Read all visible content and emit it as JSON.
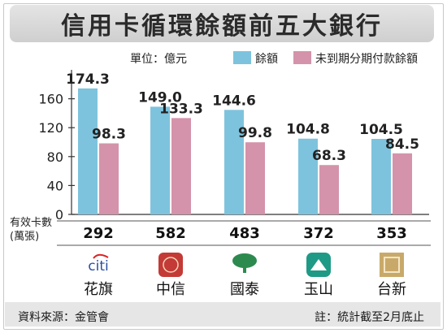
{
  "title": "信用卡循環餘額前五大銀行",
  "unit_label": "單位：億元",
  "cards_label_line1": "有效卡數",
  "cards_label_line2": "(萬張)",
  "footer": {
    "source": "資料來源：金管會",
    "note": "註：統計截至2月底止"
  },
  "colors": {
    "series1": "#7ec3dd",
    "series2": "#d493aa",
    "axis": "#333333"
  },
  "chart_data": {
    "type": "bar",
    "categories": [
      "花旗",
      "中信",
      "國泰",
      "玉山",
      "台新"
    ],
    "series": [
      {
        "name": "餘額",
        "values": [
          174.3,
          149.0,
          144.6,
          104.8,
          104.5
        ],
        "labels": [
          "174.3",
          "149.0",
          "144.6",
          "104.8",
          "104.5"
        ]
      },
      {
        "name": "未到期分期付款餘額",
        "values": [
          98.3,
          133.3,
          99.8,
          68.3,
          84.5
        ],
        "labels": [
          "98.3",
          "133.3",
          "99.8",
          "68.3",
          "84.5"
        ]
      }
    ],
    "yticks": [
      "0",
      "40",
      "80",
      "120",
      "160"
    ],
    "ylim": [
      0,
      200
    ],
    "cards": [
      "292",
      "582",
      "483",
      "372",
      "353"
    ]
  },
  "logos": [
    {
      "icon": "citi-logo",
      "text": "citi"
    },
    {
      "icon": "ctbc-logo",
      "text": ""
    },
    {
      "icon": "cathay-tree-logo",
      "text": ""
    },
    {
      "icon": "esun-mountain-logo",
      "text": ""
    },
    {
      "icon": "taishin-logo",
      "text": ""
    }
  ]
}
